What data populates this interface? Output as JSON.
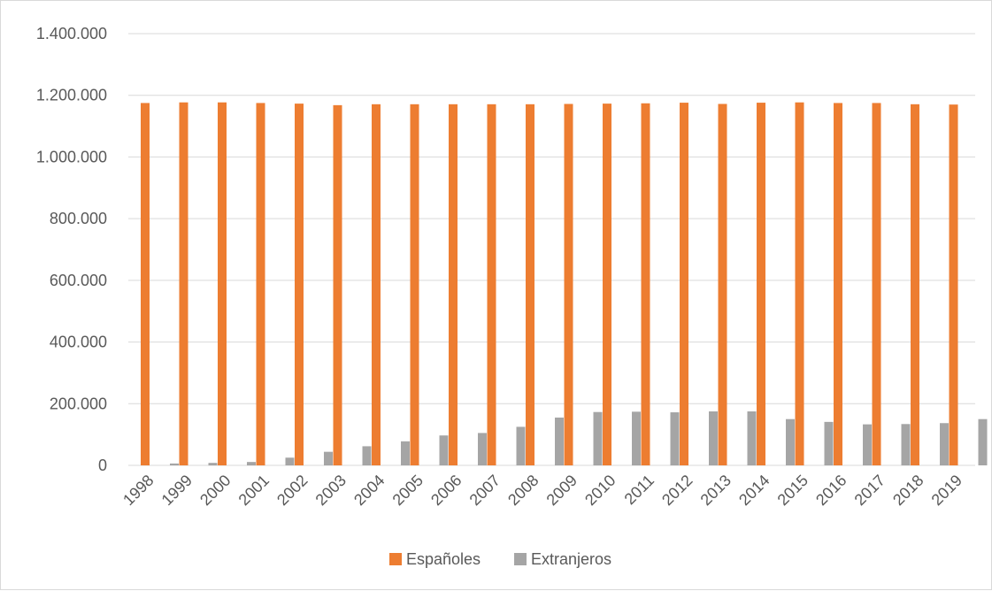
{
  "chart_data": {
    "type": "bar",
    "categories": [
      "1998",
      "1999",
      "2000",
      "2001",
      "2002",
      "2003",
      "2004",
      "2005",
      "2006",
      "2007",
      "2008",
      "2009",
      "2010",
      "2011",
      "2012",
      "2013",
      "2014",
      "2015",
      "2016",
      "2017",
      "2018",
      "2019"
    ],
    "series": [
      {
        "name": "Españoles",
        "color": "#ED7D31",
        "values": [
          1175000,
          1177000,
          1177000,
          1175000,
          1173000,
          1168000,
          1171000,
          1171000,
          1171000,
          1171000,
          1171000,
          1172000,
          1173000,
          1174000,
          1176000,
          1172000,
          1176000,
          1177000,
          1175000,
          1175000,
          1171000,
          1170000
        ]
      },
      {
        "name": "Extranjeros",
        "color": "#A5A5A5",
        "values": [
          6000,
          8000,
          11000,
          25000,
          44000,
          62000,
          78000,
          97000,
          105000,
          125000,
          155000,
          173000,
          174000,
          172000,
          175000,
          175000,
          150000,
          141000,
          133000,
          134000,
          137000,
          150000
        ]
      }
    ],
    "ylim": [
      0,
      1400000
    ],
    "yticks": [
      0,
      200000,
      400000,
      600000,
      800000,
      1000000,
      1200000,
      1400000
    ],
    "ytick_labels": [
      "0",
      "200.000",
      "400.000",
      "600.000",
      "800.000",
      "1.000.000",
      "1.200.000",
      "1.400.000"
    ],
    "grid": true,
    "legend_position": "bottom",
    "title": "",
    "xlabel": "",
    "ylabel": ""
  }
}
